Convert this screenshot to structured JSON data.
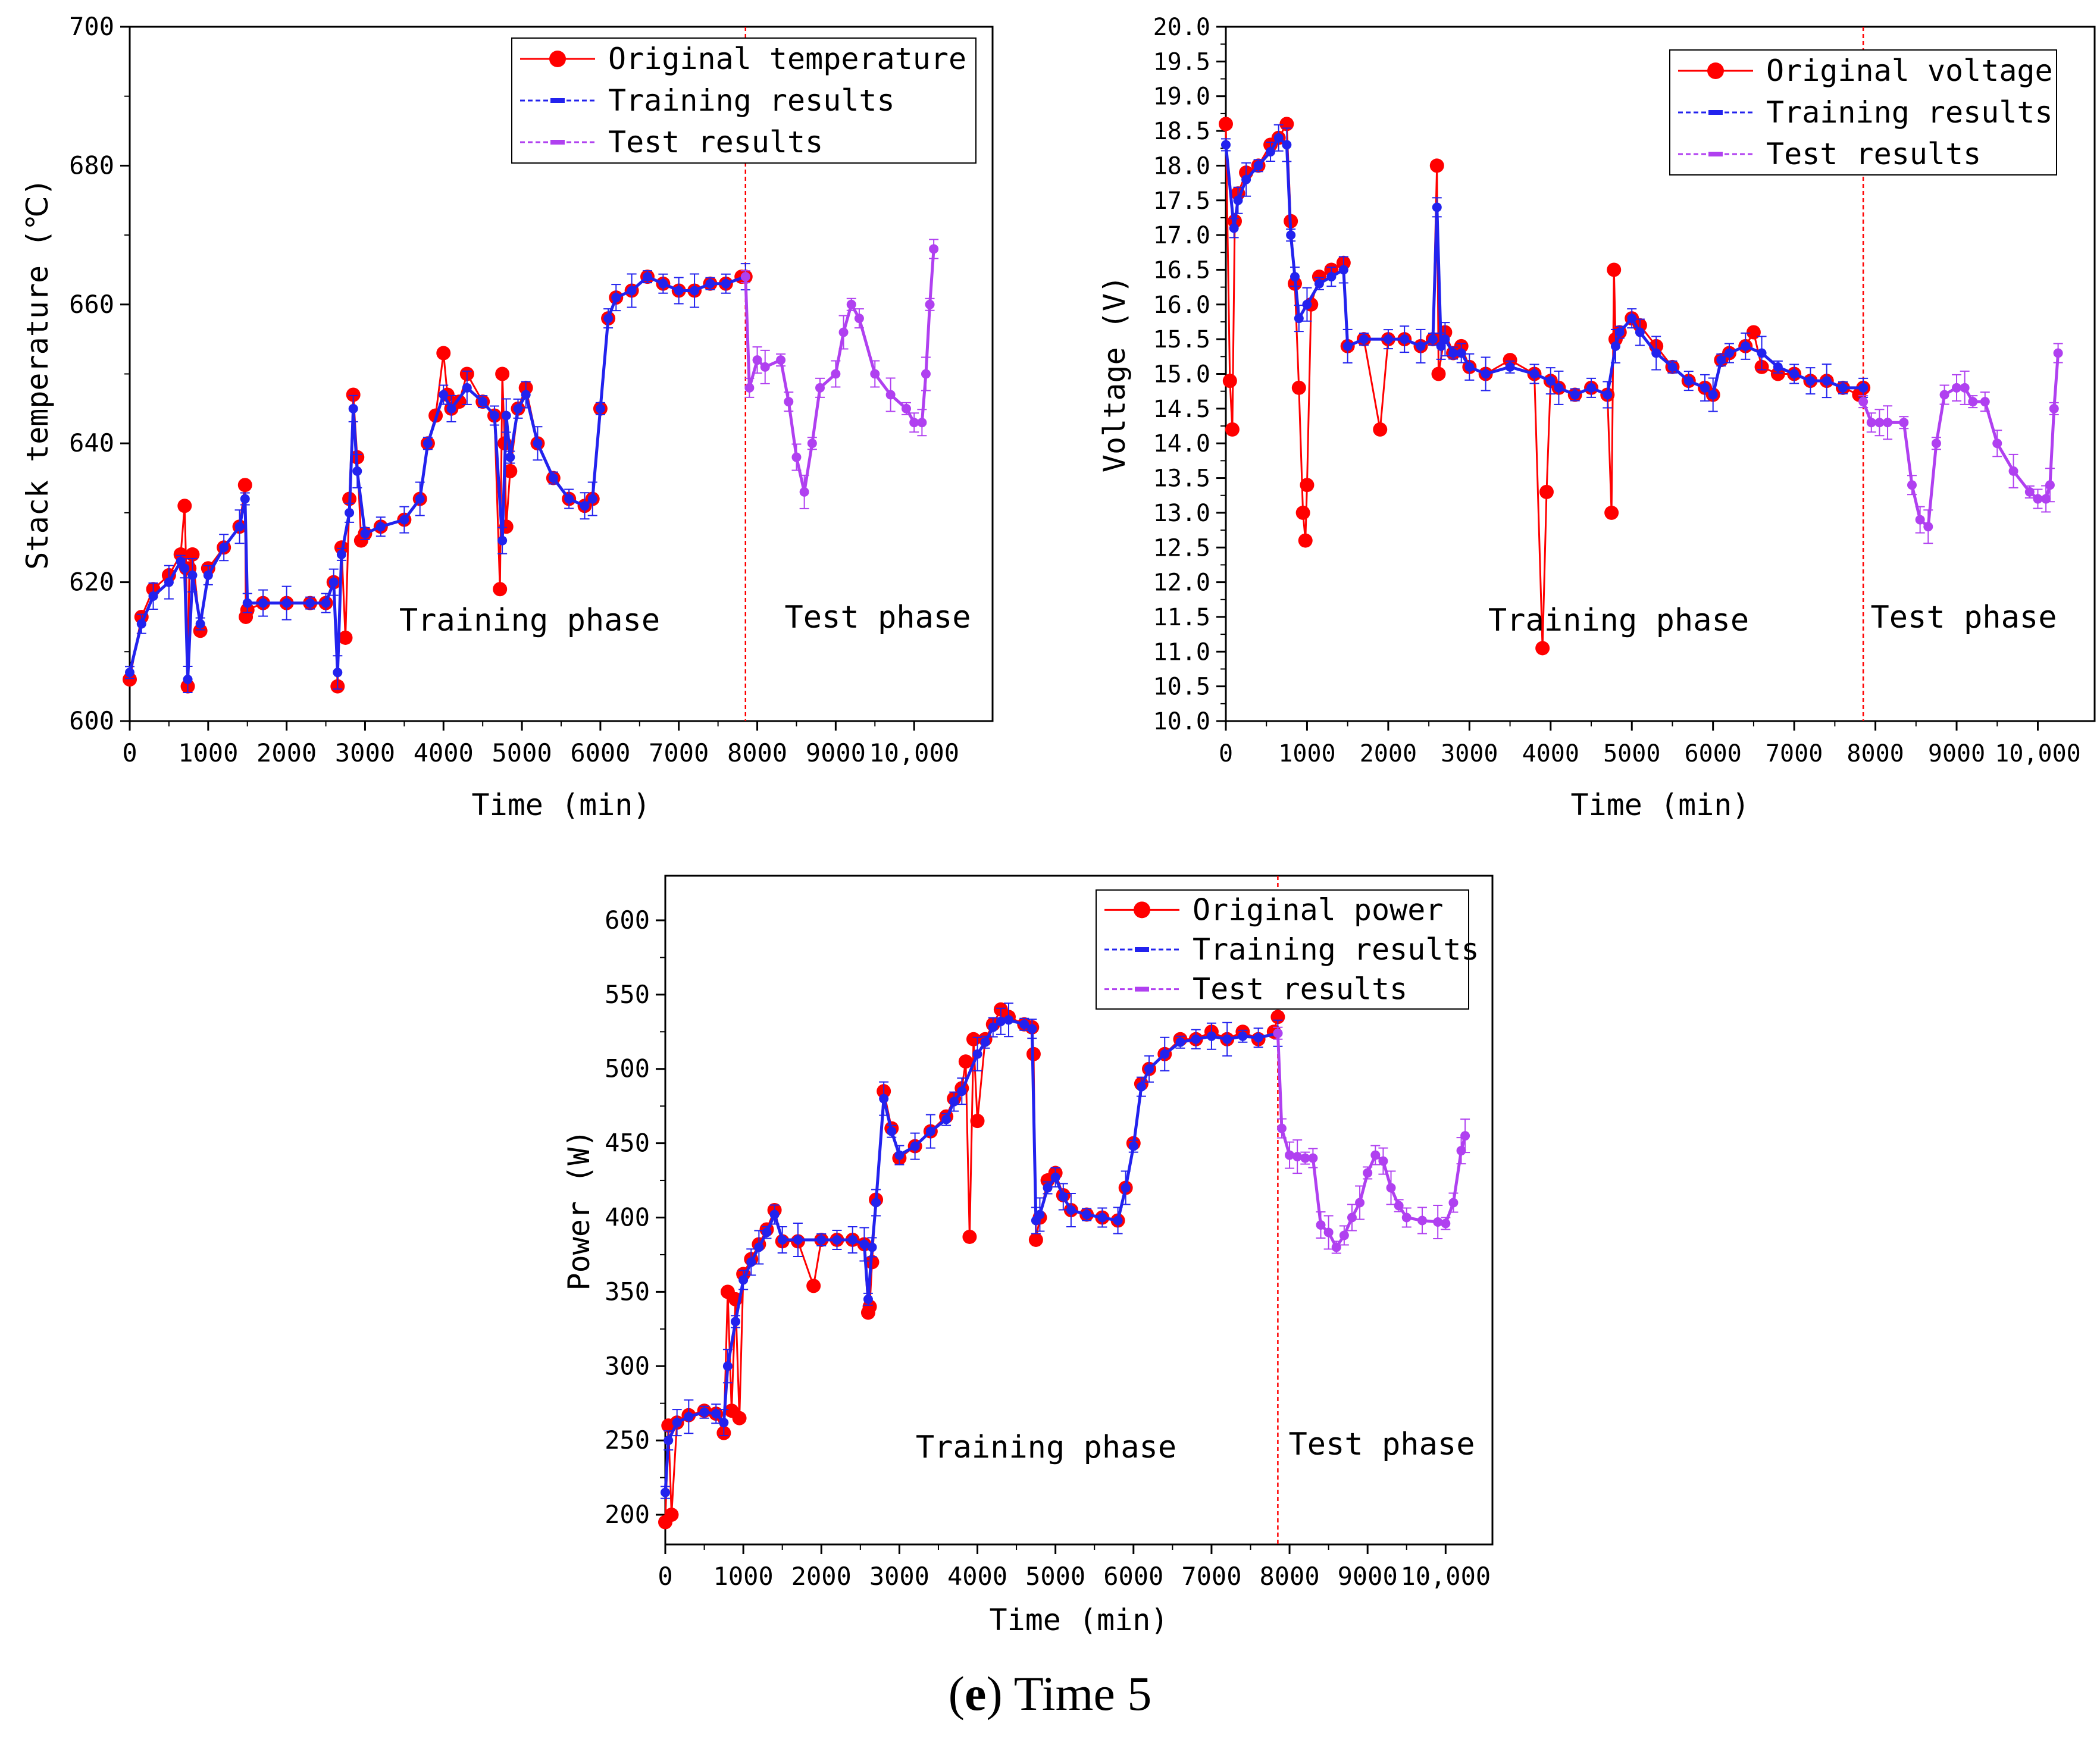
{
  "caption": {
    "letter": "e",
    "text": "Time 5"
  },
  "colors": {
    "original": "#ff0000",
    "training": "#2222ee",
    "test": "#b040f0",
    "divider": "#ff0000"
  },
  "chart_data": [
    {
      "type": "line",
      "ylabel": "Stack temperature (℃)",
      "xlabel": "Time (min)",
      "xlim": [
        0,
        11000
      ],
      "ylim": [
        600,
        700
      ],
      "xticks": [
        0,
        1000,
        2000,
        3000,
        4000,
        5000,
        6000,
        7000,
        8000,
        9000,
        10000
      ],
      "xtick_labels": [
        "0",
        "1000",
        "2000",
        "3000",
        "4000",
        "5000",
        "6000",
        "7000",
        "8000",
        "9000",
        "10,000"
      ],
      "yticks": [
        600,
        620,
        640,
        660,
        680,
        700
      ],
      "ytick_labels": [
        "600",
        "620",
        "640",
        "660",
        "680",
        "700"
      ],
      "split_x": 7850,
      "phase_labels": {
        "training": "Training phase",
        "test": "Test phase"
      },
      "legend": [
        "Original temperature",
        "Training results",
        "Test results"
      ],
      "original": {
        "x": [
          0,
          150,
          300,
          500,
          650,
          700,
          720,
          740,
          760,
          800,
          900,
          1000,
          1200,
          1400,
          1470,
          1480,
          1500,
          1700,
          2000,
          2300,
          2500,
          2600,
          2650,
          2700,
          2750,
          2800,
          2850,
          2900,
          2950,
          3000,
          3200,
          3500,
          3700,
          3800,
          3900,
          4000,
          4050,
          4100,
          4200,
          4300,
          4500,
          4650,
          4720,
          4750,
          4780,
          4800,
          4850,
          4950,
          5050,
          5200,
          5400,
          5600,
          5800,
          5900,
          6000,
          6100,
          6200,
          6400,
          6600,
          6800,
          7000,
          7200,
          7400,
          7600,
          7800,
          7850
        ],
        "y": [
          606,
          615,
          619,
          621,
          624,
          631,
          622,
          605,
          622,
          624,
          613,
          622,
          625,
          628,
          634,
          615,
          616,
          617,
          617,
          617,
          617,
          620,
          605,
          625,
          612,
          632,
          647,
          638,
          626,
          627,
          628,
          629,
          632,
          640,
          644,
          653,
          647,
          645,
          646,
          650,
          646,
          644,
          619,
          650,
          640,
          628,
          636,
          645,
          648,
          640,
          635,
          632,
          631,
          632,
          645,
          658,
          661,
          662,
          664,
          663,
          662,
          662,
          663,
          663,
          664,
          664
        ]
      },
      "training": {
        "x": [
          0,
          150,
          300,
          500,
          650,
          700,
          740,
          800,
          900,
          1000,
          1200,
          1400,
          1470,
          1500,
          1700,
          2000,
          2300,
          2500,
          2600,
          2650,
          2700,
          2800,
          2850,
          2900,
          3000,
          3200,
          3500,
          3700,
          3800,
          4000,
          4100,
          4300,
          4500,
          4650,
          4750,
          4800,
          4850,
          4950,
          5050,
          5200,
          5400,
          5600,
          5800,
          5900,
          6000,
          6100,
          6200,
          6400,
          6600,
          6800,
          7000,
          7200,
          7400,
          7600,
          7850
        ],
        "y": [
          607,
          614,
          618,
          620,
          623,
          622,
          606,
          621,
          614,
          621,
          625,
          628,
          632,
          617,
          617,
          617,
          617,
          617,
          620,
          607,
          624,
          630,
          645,
          636,
          627,
          628,
          629,
          632,
          640,
          647,
          645,
          648,
          646,
          644,
          626,
          644,
          638,
          645,
          647,
          640,
          635,
          632,
          631,
          632,
          645,
          658,
          661,
          662,
          664,
          663,
          662,
          662,
          663,
          663,
          664
        ]
      },
      "test": {
        "x": [
          7850,
          7900,
          8000,
          8100,
          8300,
          8400,
          8500,
          8600,
          8700,
          8800,
          9000,
          9100,
          9200,
          9300,
          9500,
          9700,
          9900,
          10000,
          10100,
          10150,
          10200,
          10250
        ],
        "y": [
          664,
          648,
          652,
          651,
          652,
          646,
          638,
          633,
          640,
          648,
          650,
          656,
          660,
          658,
          650,
          647,
          645,
          643,
          643,
          650,
          660,
          668
        ]
      }
    },
    {
      "type": "line",
      "ylabel": "Voltage (V)",
      "xlabel": "Time (min)",
      "xlim": [
        0,
        10700
      ],
      "ylim": [
        10.0,
        20.0
      ],
      "xticks": [
        0,
        1000,
        2000,
        3000,
        4000,
        5000,
        6000,
        7000,
        8000,
        9000,
        10000
      ],
      "xtick_labels": [
        "0",
        "1000",
        "2000",
        "3000",
        "4000",
        "5000",
        "6000",
        "7000",
        "8000",
        "9000",
        "10,000"
      ],
      "yticks": [
        10.0,
        10.5,
        11.0,
        11.5,
        12.0,
        12.5,
        13.0,
        13.5,
        14.0,
        14.5,
        15.0,
        15.5,
        16.0,
        16.5,
        17.0,
        17.5,
        18.0,
        18.5,
        19.0,
        19.5,
        20.0
      ],
      "ytick_labels": [
        "10.0",
        "10.5",
        "11.0",
        "11.5",
        "12.0",
        "12.5",
        "13.0",
        "13.5",
        "14.0",
        "14.5",
        "15.0",
        "15.5",
        "16.0",
        "16.5",
        "17.0",
        "17.5",
        "18.0",
        "18.5",
        "19.0",
        "19.5",
        "20.0"
      ],
      "split_x": 7850,
      "phase_labels": {
        "training": "Training phase",
        "test": "Test phase"
      },
      "legend": [
        "Original voltage",
        "Training results",
        "Test results"
      ],
      "original": {
        "x": [
          0,
          50,
          80,
          110,
          150,
          250,
          400,
          550,
          650,
          750,
          800,
          850,
          900,
          950,
          980,
          1000,
          1050,
          1150,
          1300,
          1450,
          1500,
          1700,
          1900,
          2000,
          2200,
          2400,
          2550,
          2600,
          2620,
          2700,
          2800,
          2900,
          3000,
          3200,
          3500,
          3800,
          3900,
          3950,
          4000,
          4100,
          4300,
          4500,
          4700,
          4750,
          4780,
          4800,
          4850,
          5000,
          5100,
          5300,
          5500,
          5700,
          5900,
          6000,
          6100,
          6200,
          6400,
          6500,
          6600,
          6800,
          7000,
          7200,
          7400,
          7600,
          7800,
          7850
        ],
        "y": [
          18.6,
          14.9,
          14.2,
          17.2,
          17.6,
          17.9,
          18.0,
          18.3,
          18.4,
          18.6,
          17.2,
          16.3,
          14.8,
          13.0,
          12.6,
          13.4,
          16.0,
          16.4,
          16.5,
          16.6,
          15.4,
          15.5,
          14.2,
          15.5,
          15.5,
          15.4,
          15.5,
          18.0,
          15.0,
          15.6,
          15.3,
          15.4,
          15.1,
          15.0,
          15.2,
          15.0,
          11.05,
          13.3,
          14.9,
          14.8,
          14.7,
          14.8,
          14.7,
          13.0,
          16.5,
          15.5,
          15.6,
          15.8,
          15.7,
          15.4,
          15.1,
          14.9,
          14.8,
          14.7,
          15.2,
          15.3,
          15.4,
          15.6,
          15.1,
          15.0,
          15.0,
          14.9,
          14.9,
          14.8,
          14.7,
          14.8
        ]
      },
      "training": {
        "x": [
          0,
          100,
          150,
          250,
          400,
          550,
          650,
          750,
          800,
          850,
          900,
          1000,
          1150,
          1300,
          1450,
          1500,
          1700,
          2000,
          2200,
          2400,
          2550,
          2600,
          2650,
          2700,
          2800,
          2900,
          3000,
          3200,
          3500,
          3800,
          4000,
          4100,
          4300,
          4500,
          4700,
          4800,
          4850,
          5000,
          5100,
          5300,
          5500,
          5700,
          5900,
          6000,
          6100,
          6200,
          6400,
          6600,
          6800,
          7000,
          7200,
          7400,
          7600,
          7850
        ],
        "y": [
          18.3,
          17.1,
          17.5,
          17.8,
          18.0,
          18.2,
          18.4,
          18.3,
          17.0,
          16.4,
          15.8,
          16.0,
          16.3,
          16.4,
          16.5,
          15.4,
          15.5,
          15.5,
          15.5,
          15.4,
          15.5,
          17.4,
          15.4,
          15.5,
          15.3,
          15.3,
          15.1,
          15.0,
          15.1,
          15.0,
          14.9,
          14.8,
          14.7,
          14.8,
          14.7,
          15.4,
          15.6,
          15.8,
          15.6,
          15.3,
          15.1,
          14.9,
          14.8,
          14.7,
          15.2,
          15.3,
          15.4,
          15.3,
          15.1,
          15.0,
          14.9,
          14.9,
          14.8,
          14.8
        ]
      },
      "test": {
        "x": [
          7850,
          7950,
          8050,
          8150,
          8350,
          8450,
          8550,
          8650,
          8750,
          8850,
          9000,
          9100,
          9200,
          9350,
          9500,
          9700,
          9900,
          10000,
          10100,
          10150,
          10200,
          10250
        ],
        "y": [
          14.6,
          14.3,
          14.3,
          14.3,
          14.3,
          13.4,
          12.9,
          12.8,
          14.0,
          14.7,
          14.8,
          14.8,
          14.6,
          14.6,
          14.0,
          13.6,
          13.3,
          13.2,
          13.2,
          13.4,
          14.5,
          15.3
        ]
      }
    },
    {
      "type": "line",
      "ylabel": "Power (W)",
      "xlabel": "Time (min)",
      "xlim": [
        0,
        10600
      ],
      "ylim": [
        180,
        630
      ],
      "xticks": [
        0,
        1000,
        2000,
        3000,
        4000,
        5000,
        6000,
        7000,
        8000,
        9000,
        10000
      ],
      "xtick_labels": [
        "0",
        "1000",
        "2000",
        "3000",
        "4000",
        "5000",
        "6000",
        "7000",
        "8000",
        "9000",
        "10,000"
      ],
      "yticks": [
        200,
        250,
        300,
        350,
        400,
        450,
        500,
        550,
        600
      ],
      "ytick_labels": [
        "200",
        "250",
        "300",
        "350",
        "400",
        "450",
        "500",
        "550",
        "600"
      ],
      "split_x": 7850,
      "phase_labels": {
        "training": "Training phase",
        "test": "Test phase"
      },
      "legend": [
        "Original power",
        "Training results",
        "Test results"
      ],
      "original": {
        "x": [
          0,
          40,
          80,
          150,
          300,
          500,
          650,
          750,
          800,
          850,
          900,
          950,
          1000,
          1100,
          1200,
          1300,
          1400,
          1500,
          1700,
          1900,
          2000,
          2200,
          2400,
          2550,
          2600,
          2620,
          2650,
          2700,
          2800,
          2900,
          3000,
          3200,
          3400,
          3600,
          3700,
          3800,
          3850,
          3900,
          3950,
          4000,
          4100,
          4200,
          4300,
          4400,
          4600,
          4700,
          4720,
          4750,
          4800,
          4900,
          5000,
          5100,
          5200,
          5400,
          5600,
          5800,
          5900,
          6000,
          6100,
          6200,
          6400,
          6600,
          6800,
          7000,
          7200,
          7400,
          7600,
          7800,
          7850
        ],
        "y": [
          195,
          260,
          200,
          262,
          267,
          270,
          268,
          255,
          350,
          270,
          345,
          265,
          362,
          372,
          382,
          392,
          405,
          384,
          384,
          354,
          385,
          385,
          385,
          382,
          336,
          340,
          370,
          412,
          485,
          460,
          440,
          448,
          458,
          468,
          480,
          487,
          505,
          387,
          520,
          465,
          520,
          530,
          540,
          535,
          530,
          528,
          510,
          385,
          400,
          425,
          430,
          415,
          405,
          402,
          400,
          398,
          420,
          450,
          490,
          500,
          510,
          520,
          520,
          525,
          520,
          525,
          520,
          525,
          535
        ]
      },
      "training": {
        "x": [
          0,
          40,
          150,
          300,
          500,
          650,
          750,
          800,
          900,
          1000,
          1100,
          1200,
          1300,
          1400,
          1500,
          1700,
          2000,
          2200,
          2400,
          2550,
          2600,
          2650,
          2700,
          2800,
          2900,
          3000,
          3200,
          3400,
          3600,
          3700,
          3800,
          4000,
          4100,
          4200,
          4300,
          4400,
          4600,
          4700,
          4750,
          4800,
          4900,
          5000,
          5100,
          5200,
          5400,
          5600,
          5800,
          5900,
          6000,
          6100,
          6200,
          6400,
          6600,
          6800,
          7000,
          7200,
          7400,
          7600,
          7850
        ],
        "y": [
          215,
          250,
          262,
          266,
          269,
          268,
          262,
          300,
          330,
          358,
          370,
          380,
          390,
          402,
          385,
          385,
          385,
          385,
          385,
          382,
          345,
          380,
          410,
          480,
          458,
          442,
          448,
          458,
          466,
          478,
          485,
          510,
          518,
          528,
          532,
          533,
          530,
          527,
          398,
          402,
          420,
          427,
          414,
          405,
          402,
          400,
          398,
          420,
          448,
          488,
          500,
          510,
          518,
          520,
          522,
          520,
          522,
          521,
          524
        ]
      },
      "test": {
        "x": [
          7850,
          7900,
          8000,
          8100,
          8200,
          8300,
          8400,
          8500,
          8600,
          8700,
          8800,
          8900,
          9000,
          9100,
          9200,
          9300,
          9400,
          9500,
          9700,
          9900,
          10000,
          10100,
          10200,
          10250
        ],
        "y": [
          524,
          460,
          442,
          441,
          440,
          440,
          395,
          390,
          380,
          388,
          400,
          410,
          430,
          442,
          438,
          420,
          408,
          400,
          398,
          397,
          396,
          410,
          445,
          455
        ]
      }
    }
  ]
}
